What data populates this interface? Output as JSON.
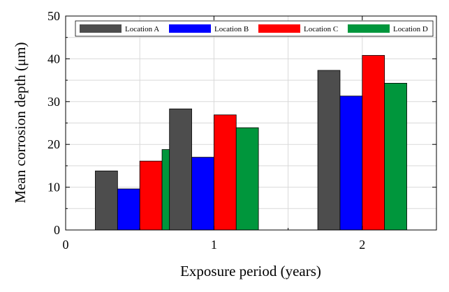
{
  "chart_data": {
    "type": "bar",
    "title": "",
    "xlabel": "Exposure period (years)",
    "ylabel": "Mean corrosion depth (μm)",
    "xlim": [
      0,
      2.5
    ],
    "ylim": [
      0,
      50
    ],
    "x": [
      0.5,
      1,
      2
    ],
    "xticks": [
      0,
      1,
      2
    ],
    "yticks": [
      0,
      10,
      20,
      30,
      40,
      50
    ],
    "grid": true,
    "legend_position": "top",
    "series": [
      {
        "name": "Location A",
        "color": "#4d4d4d",
        "values": [
          13.8,
          28.3,
          37.3
        ]
      },
      {
        "name": "Location B",
        "color": "#0000ff",
        "values": [
          9.6,
          17.0,
          31.3
        ]
      },
      {
        "name": "Location C",
        "color": "#ff0000",
        "values": [
          16.1,
          26.9,
          40.8
        ]
      },
      {
        "name": "Location D",
        "color": "#00963c",
        "values": [
          18.8,
          23.9,
          34.3
        ]
      }
    ]
  }
}
